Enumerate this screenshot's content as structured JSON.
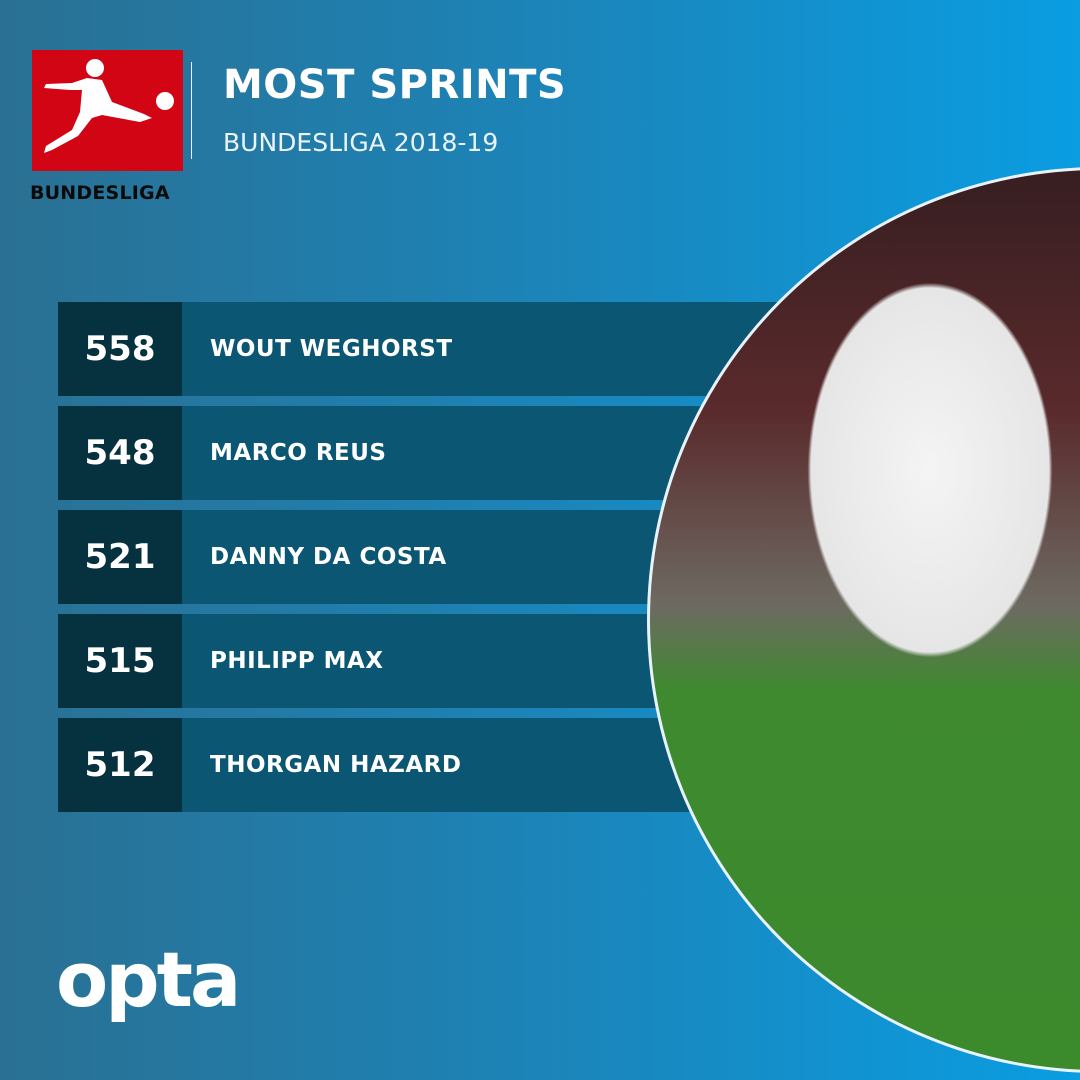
{
  "header": {
    "title": "MOST SPRINTS",
    "subtitle": "BUNDESLIGA 2018-19",
    "logo_text": "BUNDESLIGA"
  },
  "rankings": [
    {
      "value": "558",
      "player": "WOUT WEGHORST"
    },
    {
      "value": "548",
      "player": "MARCO REUS"
    },
    {
      "value": "521",
      "player": "DANNY DA COSTA"
    },
    {
      "value": "515",
      "player": "PHILIPP MAX"
    },
    {
      "value": "512",
      "player": "THORGAN HAZARD"
    }
  ],
  "footer": {
    "brand": "opta"
  },
  "colors": {
    "brand_red": "#d20515",
    "number_cell": "#06313f",
    "name_cell": "#0b5673",
    "background": "#1c84b8"
  }
}
